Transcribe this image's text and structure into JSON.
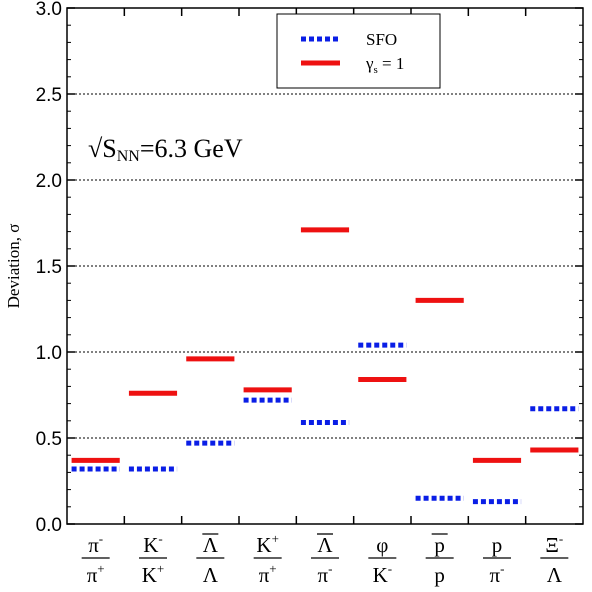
{
  "chart_data": {
    "type": "scatter",
    "ylabel": "Deviation, σ",
    "ylim": [
      0,
      3.0
    ],
    "yticks": [
      "0.0",
      "0.5",
      "1.0",
      "1.5",
      "2.0",
      "2.5",
      "3.0"
    ],
    "grid": "horizontal dotted at 0.5 steps",
    "legend_position": "top-right",
    "annotation": {
      "prefix": "√S",
      "sub": "NN",
      "suffix": "=6.3 GeV"
    },
    "categories": [
      {
        "num": "π",
        "num_sup": "-",
        "num_bar": false,
        "den": "π",
        "den_sup": "+",
        "den_bar": false
      },
      {
        "num": "K",
        "num_sup": "-",
        "num_bar": false,
        "den": "K",
        "den_sup": "+",
        "den_bar": false
      },
      {
        "num": "Λ",
        "num_sup": "",
        "num_bar": true,
        "den": "Λ",
        "den_sup": "",
        "den_bar": false
      },
      {
        "num": "K",
        "num_sup": "+",
        "num_bar": false,
        "den": "π",
        "den_sup": "+",
        "den_bar": false
      },
      {
        "num": "Λ",
        "num_sup": "",
        "num_bar": true,
        "den": "π",
        "den_sup": "-",
        "den_bar": false
      },
      {
        "num": "φ",
        "num_sup": "",
        "num_bar": false,
        "den": "K",
        "den_sup": "-",
        "den_bar": false
      },
      {
        "num": "p",
        "num_sup": "",
        "num_bar": true,
        "den": "p",
        "den_sup": "",
        "den_bar": false
      },
      {
        "num": "p",
        "num_sup": "",
        "num_bar": false,
        "den": "π",
        "den_sup": "-",
        "den_bar": false
      },
      {
        "num": "Ξ",
        "num_sup": "-",
        "num_bar": false,
        "den": "Λ",
        "den_sup": "",
        "den_bar": false
      }
    ],
    "series": [
      {
        "name": "SFO",
        "legend_sub": "",
        "style": "dotted",
        "color": "#0a1ee6",
        "values": [
          0.32,
          0.32,
          0.47,
          0.72,
          0.59,
          1.04,
          0.15,
          0.13,
          0.67
        ]
      },
      {
        "name": "γ",
        "legend_sub": "s",
        "legend_suffix": " = 1",
        "style": "solid",
        "color": "#ee1111",
        "values": [
          0.37,
          0.76,
          0.96,
          0.78,
          1.71,
          0.84,
          1.3,
          0.37,
          0.43
        ]
      }
    ]
  }
}
